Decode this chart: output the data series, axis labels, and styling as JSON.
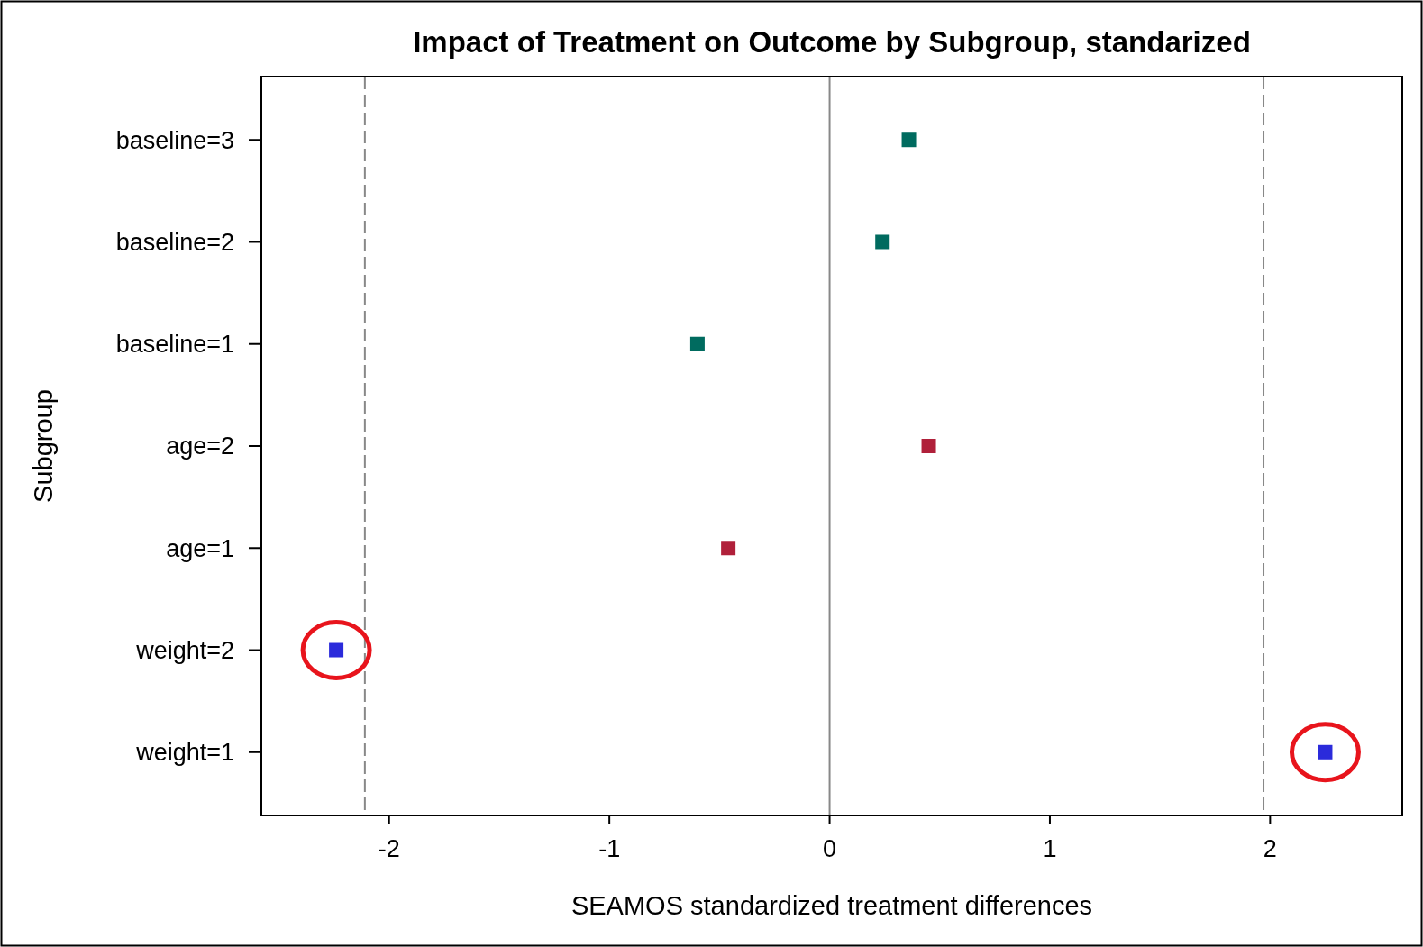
{
  "chart_data": {
    "type": "scatter",
    "orientation": "horizontal",
    "title": "Impact of Treatment on Outcome by Subgroup, standarized",
    "xlabel": "SEAMOS standardized treatment differences",
    "ylabel": "Subgroup",
    "categories": [
      "baseline=3",
      "baseline=2",
      "baseline=1",
      "age=2",
      "age=1",
      "weight=2",
      "weight=1"
    ],
    "series": [
      {
        "color": "#006b5f",
        "values": [
          0.36,
          0.24,
          -0.6,
          null,
          null,
          null,
          null
        ]
      },
      {
        "color": "#b0203a",
        "values": [
          null,
          null,
          null,
          0.45,
          -0.46,
          null,
          null
        ]
      },
      {
        "color": "#2b2bdb",
        "values": [
          null,
          null,
          null,
          null,
          null,
          -2.24,
          2.25
        ]
      }
    ],
    "marker": "square",
    "xlim": [
      -2.58,
      2.6
    ],
    "xticks": [
      -2,
      -1,
      0,
      1,
      2
    ],
    "ref_lines": [
      {
        "axis": "x",
        "value": -2.11,
        "color": "#888888",
        "line_style": "dashed"
      },
      {
        "axis": "x",
        "value": 0,
        "color": "#888888",
        "line_style": "solid"
      },
      {
        "axis": "x",
        "value": 1.97,
        "color": "#888888",
        "line_style": "dashed"
      }
    ]
  }
}
